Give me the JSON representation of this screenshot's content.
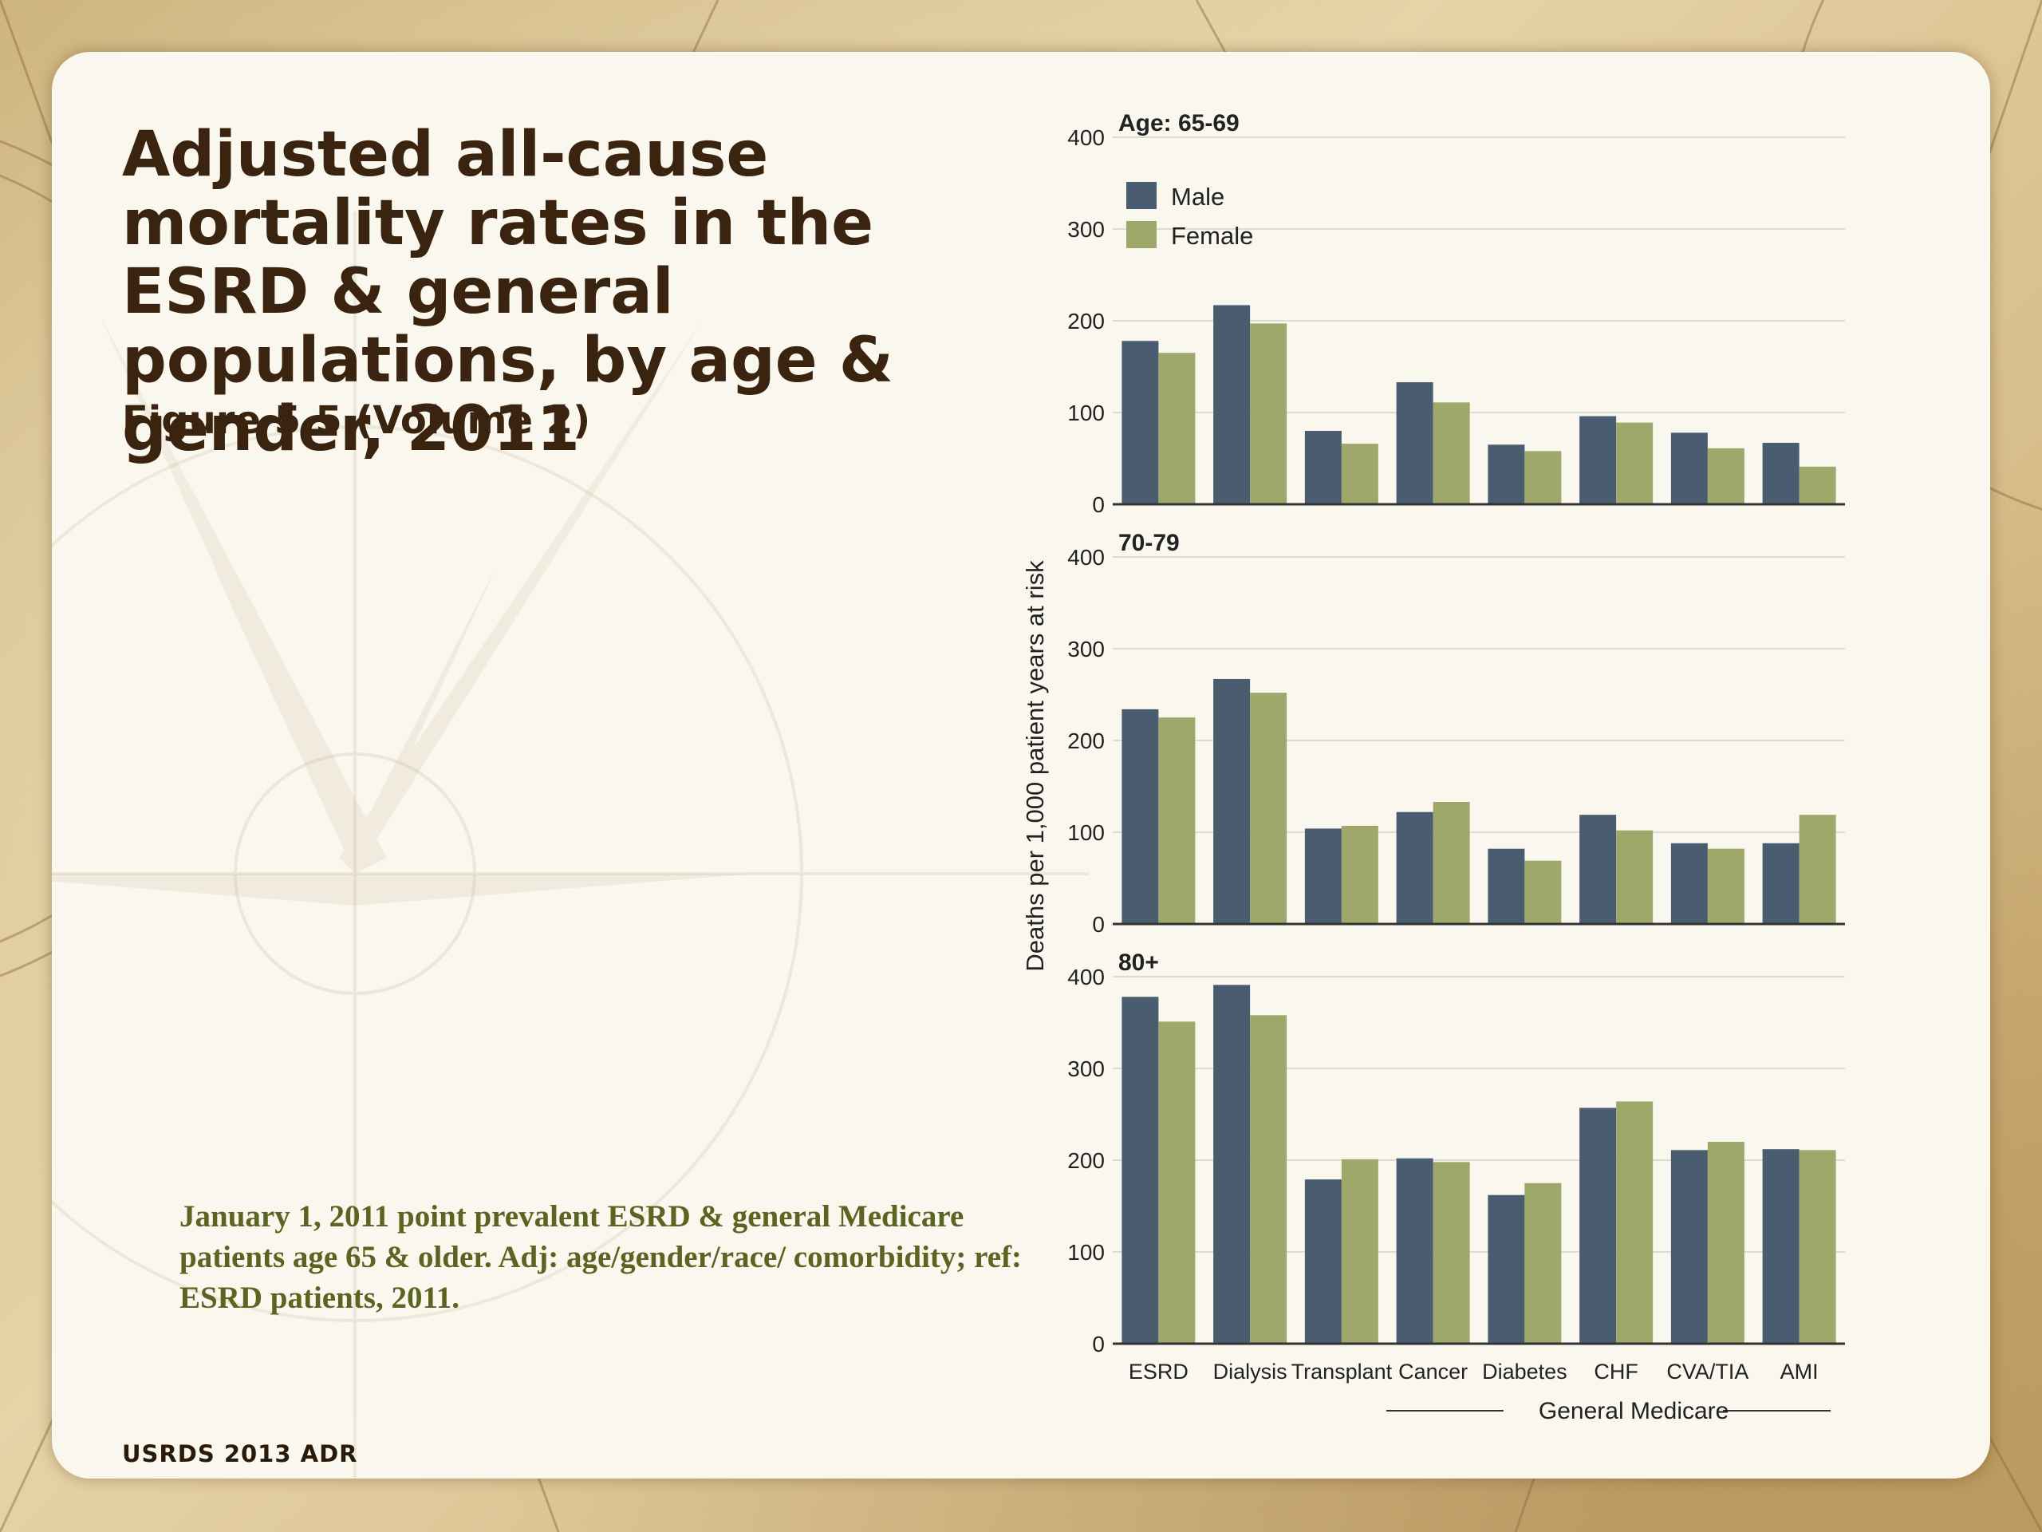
{
  "slide": {
    "title": "Adjusted all-cause mortality rates in the ESRD & general populations, by age & gender, 2011",
    "subtitle": "Figure 5.5 (Volume 2)",
    "footnote": "January 1, 2011 point prevalent ESRD & general Medicare patients age 65 & older. Adj: age/gender/race/ comorbidity; ref: ESRD patients, 2011.",
    "source": "USRDS 2013 ADR"
  },
  "colors": {
    "male": "#4a5d70",
    "female": "#9ea86a",
    "axis": "#333333",
    "grid": "#dcdcd0"
  },
  "chart_data": {
    "type": "bar",
    "ylabel": "Deaths per 1,000 patient years at risk",
    "xgroup_label": "General Medicare",
    "categories": [
      "ESRD",
      "Dialysis",
      "Transplant",
      "Cancer",
      "Diabetes",
      "CHF",
      "CVA/TIA",
      "AMI"
    ],
    "yticks": [
      "0",
      "100",
      "200",
      "300",
      "400"
    ],
    "ylim": [
      0,
      400
    ],
    "legend": [
      {
        "name": "Male"
      },
      {
        "name": "Female"
      }
    ],
    "legend_position": "top-left",
    "grid": true,
    "panels": [
      {
        "label": "Age: 65-69",
        "series": [
          {
            "name": "Male",
            "values": [
              178,
              217,
              80,
              133,
              65,
              96,
              78,
              67
            ]
          },
          {
            "name": "Female",
            "values": [
              165,
              197,
              66,
              111,
              58,
              89,
              61,
              41
            ]
          }
        ]
      },
      {
        "label": "70-79",
        "series": [
          {
            "name": "Male",
            "values": [
              234,
              267,
              104,
              122,
              82,
              119,
              88,
              88
            ]
          },
          {
            "name": "Female",
            "values": [
              225,
              252,
              107,
              133,
              69,
              102,
              82,
              119
            ]
          }
        ]
      },
      {
        "label": "80+",
        "series": [
          {
            "name": "Male",
            "values": [
              378,
              391,
              179,
              202,
              162,
              257,
              211,
              212
            ]
          },
          {
            "name": "Female",
            "values": [
              351,
              358,
              201,
              198,
              175,
              264,
              220,
              211
            ]
          }
        ]
      }
    ]
  }
}
